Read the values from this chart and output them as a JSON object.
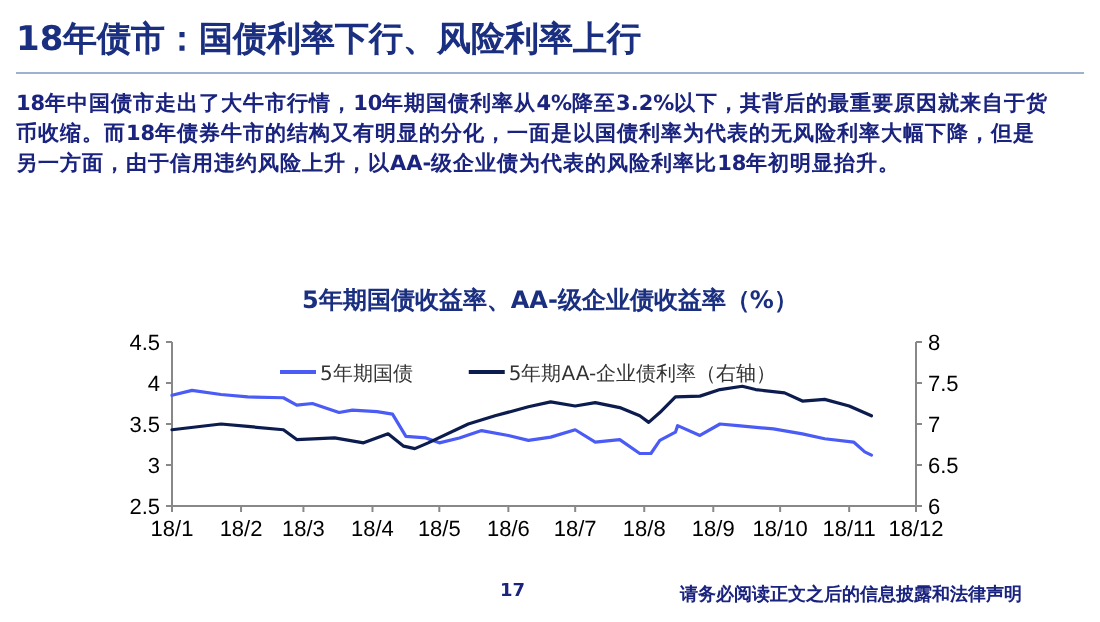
{
  "chart_data": {
    "type": "line",
    "title": "18年债市：国债利率下行、风险利率上行",
    "subtitle": "5年期国债收益率、AA-级企业债收益率（%）",
    "annotations": [
      "18年中国债市走出了大牛市行情，10年期国债利率从4%降至3.2%以下，其背后的最重要原因就来自于货币收缩。而18年债券牛市的结构又有明显的分化，一面是以国债利率为代表的无风险利率大幅下降，但是另一方面，由于信用违约风险上升，以AA-级企业债为代表的风险利率比18年初明显抬升。",
      "17",
      "请务必阅读正文之后的信息披露和法律声明"
    ],
    "legend": "top",
    "xlim": [
      "--01-01",
      "--12-01"
    ],
    "xticks": [
      {
        "value": "--01-01",
        "label": "18/1"
      },
      {
        "value": "--02-01",
        "label": "18/2"
      },
      {
        "value": "--03-01",
        "label": "18/3"
      },
      {
        "value": "--04-01",
        "label": "18/4"
      },
      {
        "value": "--05-01",
        "label": "18/5"
      },
      {
        "value": "--06-01",
        "label": "18/6"
      },
      {
        "value": "--07-01",
        "label": "18/7"
      },
      {
        "value": "--08-01",
        "label": "18/8"
      },
      {
        "value": "--09-01",
        "label": "18/9"
      },
      {
        "value": "--10-01",
        "label": "18/10"
      },
      {
        "value": "--11-01",
        "label": "18/11"
      },
      {
        "value": "--12-01",
        "label": "18/12"
      }
    ],
    "ylim": [
      2.5,
      4.5
    ],
    "yticks": [
      2.5,
      3,
      3.5,
      4,
      4.5
    ],
    "y2lim": [
      6,
      8
    ],
    "y2ticks": [
      6,
      6.5,
      7,
      7.5,
      8
    ],
    "series": [
      {
        "name": "5年期国债",
        "color": "#4a5cf5",
        "x": [
          "--01-01",
          "--01-10",
          "--01-23",
          "--02-04",
          "--02-20",
          "--02-26",
          "--03-05",
          "--03-17",
          "--03-23",
          "--04-03",
          "--04-10",
          "--04-16",
          "--04-25",
          "--05-01",
          "--05-10",
          "--05-20",
          "--06-01",
          "--06-10",
          "--06-20",
          "--07-01",
          "--07-10",
          "--07-21",
          "--07-30",
          "--08-04",
          "--08-08",
          "--08-15",
          "--08-16",
          "--08-26",
          "--09-04",
          "--09-12",
          "--09-28",
          "--10-11",
          "--10-21",
          "--11-03",
          "--11-08",
          "--11-11"
        ],
        "values": [
          3.85,
          3.91,
          3.86,
          3.83,
          3.82,
          3.73,
          3.75,
          3.64,
          3.67,
          3.65,
          3.62,
          3.35,
          3.33,
          3.27,
          3.33,
          3.42,
          3.36,
          3.3,
          3.34,
          3.43,
          3.28,
          3.31,
          3.14,
          3.14,
          3.3,
          3.4,
          3.48,
          3.36,
          3.5,
          3.48,
          3.44,
          3.38,
          3.32,
          3.28,
          3.16,
          3.12
        ]
      },
      {
        "name": "5年期AA-企业债利率（右轴）",
        "color": "#0c1c4f",
        "axis": "y2",
        "x": [
          "--01-01",
          "--01-23",
          "--02-04",
          "--02-20",
          "--02-26",
          "--03-15",
          "--03-28",
          "--04-08",
          "--04-15",
          "--04-20",
          "--04-26",
          "--05-14",
          "--05-26",
          "--06-10",
          "--06-20",
          "--07-01",
          "--07-10",
          "--07-21",
          "--07-30",
          "--08-03",
          "--08-08",
          "--08-15",
          "--08-26",
          "--09-04",
          "--09-14",
          "--09-20",
          "--10-03",
          "--10-11",
          "--10-21",
          "--11-01",
          "--11-11"
        ],
        "values": [
          6.93,
          7.0,
          6.97,
          6.93,
          6.81,
          6.83,
          6.77,
          6.88,
          6.73,
          6.7,
          6.77,
          7.0,
          7.1,
          7.21,
          7.27,
          7.22,
          7.26,
          7.2,
          7.1,
          7.02,
          7.14,
          7.33,
          7.34,
          7.42,
          7.46,
          7.42,
          7.38,
          7.28,
          7.3,
          7.22,
          7.1
        ]
      }
    ]
  }
}
